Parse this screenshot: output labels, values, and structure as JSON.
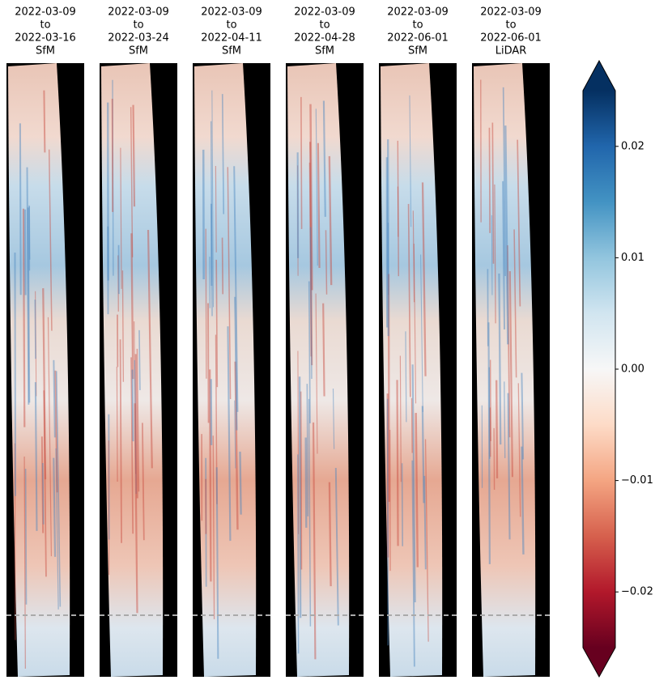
{
  "chart_data": {
    "type": "heatmap",
    "panels": [
      {
        "title": [
          "2022-03-09",
          "to",
          "2022-03-16",
          "SfM"
        ]
      },
      {
        "title": [
          "2022-03-09",
          "to",
          "2022-03-24",
          "SfM"
        ]
      },
      {
        "title": [
          "2022-03-09",
          "to",
          "2022-04-11",
          "SfM"
        ]
      },
      {
        "title": [
          "2022-03-09",
          "to",
          "2022-04-28",
          "SfM"
        ]
      },
      {
        "title": [
          "2022-03-09",
          "to",
          "2022-06-01",
          "SfM"
        ]
      },
      {
        "title": [
          "2022-03-09",
          "to",
          "2022-06-01",
          "LiDAR"
        ]
      }
    ],
    "colorbar": {
      "ylim": [
        -0.025,
        0.025
      ],
      "yticks": [
        {
          "value": -0.02,
          "label": "−0.02"
        },
        {
          "value": -0.01,
          "label": "−0.01"
        },
        {
          "value": 0,
          "label": "0.00"
        },
        0.01,
        0.02
      ],
      "extend": "both",
      "colors": [
        "#67001f",
        "#b2182b",
        "#d6604d",
        "#f4a582",
        "#fddbc7",
        "#f7f7f7",
        "#d1e5f0",
        "#92c5de",
        "#4393c3",
        "#2166ac",
        "#053061"
      ]
    }
  }
}
